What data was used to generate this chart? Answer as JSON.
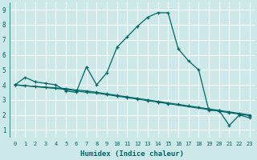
{
  "xlabel": "Humidex (Indice chaleur)",
  "background_color": "#cce8e8",
  "grid_color": "#ffffff",
  "line_color": "#006666",
  "xlim": [
    -0.5,
    23.5
  ],
  "ylim": [
    0.5,
    9.5
  ],
  "xticks": [
    0,
    1,
    2,
    3,
    4,
    5,
    6,
    7,
    8,
    9,
    10,
    11,
    12,
    13,
    14,
    15,
    16,
    17,
    18,
    19,
    20,
    21,
    22,
    23
  ],
  "yticks": [
    1,
    2,
    3,
    4,
    5,
    6,
    7,
    8,
    9
  ],
  "line1_x": [
    0,
    1,
    2,
    3,
    4,
    5,
    6,
    7,
    8,
    9,
    10,
    11,
    12,
    13,
    14,
    15,
    16,
    17,
    18,
    19,
    20,
    21,
    22,
    23
  ],
  "line1_y": [
    4.0,
    4.5,
    4.2,
    4.1,
    4.0,
    3.6,
    3.5,
    5.2,
    4.0,
    4.8,
    6.5,
    7.2,
    7.9,
    8.5,
    8.8,
    8.8,
    6.4,
    5.6,
    5.0,
    2.3,
    2.3,
    1.3,
    2.0,
    1.8
  ],
  "line2_x": [
    0,
    5,
    6,
    7,
    8,
    9,
    10,
    11,
    12,
    13,
    14,
    15,
    19,
    20,
    21,
    22,
    23
  ],
  "line2_y": [
    4.0,
    3.7,
    3.6,
    3.5,
    3.45,
    3.35,
    3.25,
    3.15,
    3.05,
    2.95,
    2.85,
    2.75,
    2.35,
    2.25,
    2.15,
    2.05,
    1.95
  ],
  "line3_x": [
    0,
    1,
    2,
    3,
    4,
    5,
    6,
    7,
    8,
    9,
    10,
    11,
    12,
    13,
    14,
    15,
    16,
    17,
    18,
    19,
    20,
    21,
    22,
    23
  ],
  "line3_y": [
    4.0,
    3.95,
    3.9,
    3.85,
    3.8,
    3.75,
    3.65,
    3.6,
    3.5,
    3.4,
    3.3,
    3.2,
    3.1,
    3.0,
    2.9,
    2.8,
    2.7,
    2.6,
    2.5,
    2.4,
    2.3,
    2.2,
    2.1,
    2.0
  ]
}
